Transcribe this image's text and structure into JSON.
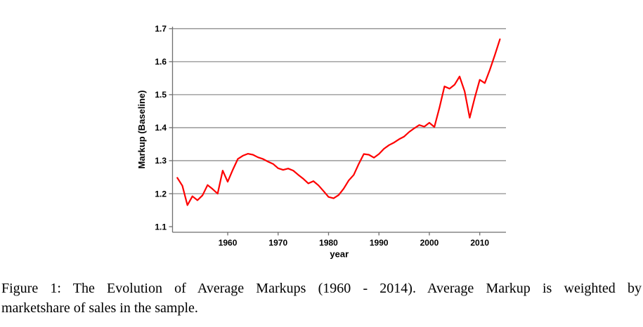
{
  "figure": {
    "caption": {
      "line1": "Figure 1: The Evolution of Average Markups (1960 - 2014). Average Markup is weighted by",
      "line2": "marketshare of sales in the sample."
    }
  },
  "chart_data": {
    "type": "line",
    "title": "",
    "xlabel": "year",
    "ylabel": "Markup (Baseline)",
    "series_name": "Average Markup (Baseline)",
    "x": [
      1950,
      1951,
      1952,
      1953,
      1954,
      1955,
      1956,
      1957,
      1958,
      1959,
      1960,
      1961,
      1962,
      1963,
      1964,
      1965,
      1966,
      1967,
      1968,
      1969,
      1970,
      1971,
      1972,
      1973,
      1974,
      1975,
      1976,
      1977,
      1978,
      1979,
      1980,
      1981,
      1982,
      1983,
      1984,
      1985,
      1986,
      1987,
      1988,
      1989,
      1990,
      1991,
      1992,
      1993,
      1994,
      1995,
      1996,
      1997,
      1998,
      1999,
      2000,
      2001,
      2002,
      2003,
      2004,
      2005,
      2006,
      2007,
      2008,
      2009,
      2010,
      2011,
      2012,
      2013,
      2014
    ],
    "values": [
      1.248,
      1.224,
      1.165,
      1.192,
      1.18,
      1.195,
      1.226,
      1.214,
      1.2,
      1.27,
      1.236,
      1.272,
      1.305,
      1.315,
      1.321,
      1.318,
      1.31,
      1.305,
      1.297,
      1.29,
      1.277,
      1.272,
      1.276,
      1.27,
      1.257,
      1.245,
      1.231,
      1.238,
      1.225,
      1.208,
      1.19,
      1.186,
      1.196,
      1.215,
      1.24,
      1.257,
      1.29,
      1.32,
      1.318,
      1.309,
      1.32,
      1.336,
      1.347,
      1.355,
      1.365,
      1.373,
      1.387,
      1.398,
      1.408,
      1.403,
      1.415,
      1.402,
      1.46,
      1.525,
      1.518,
      1.53,
      1.555,
      1.51,
      1.43,
      1.49,
      1.545,
      1.535,
      1.575,
      1.62,
      1.668
    ],
    "xticks": [
      1960,
      1970,
      1980,
      1990,
      2000,
      2010
    ],
    "yticks": [
      1.1,
      1.2,
      1.3,
      1.4,
      1.5,
      1.6,
      1.7
    ],
    "grid_yticks": [
      1.2,
      1.3,
      1.4,
      1.5,
      1.6,
      1.7
    ],
    "xlim": [
      1949.05,
      2015.2
    ],
    "ylim": [
      1.083,
      1.706
    ],
    "grid": "horizontal",
    "legend": "none",
    "line_color": "#fe0000",
    "grid_color": "#8f8f8f",
    "axis_color": "#6e6e6e",
    "tick_color": "#6e6e6e",
    "label_color": "#000000"
  }
}
